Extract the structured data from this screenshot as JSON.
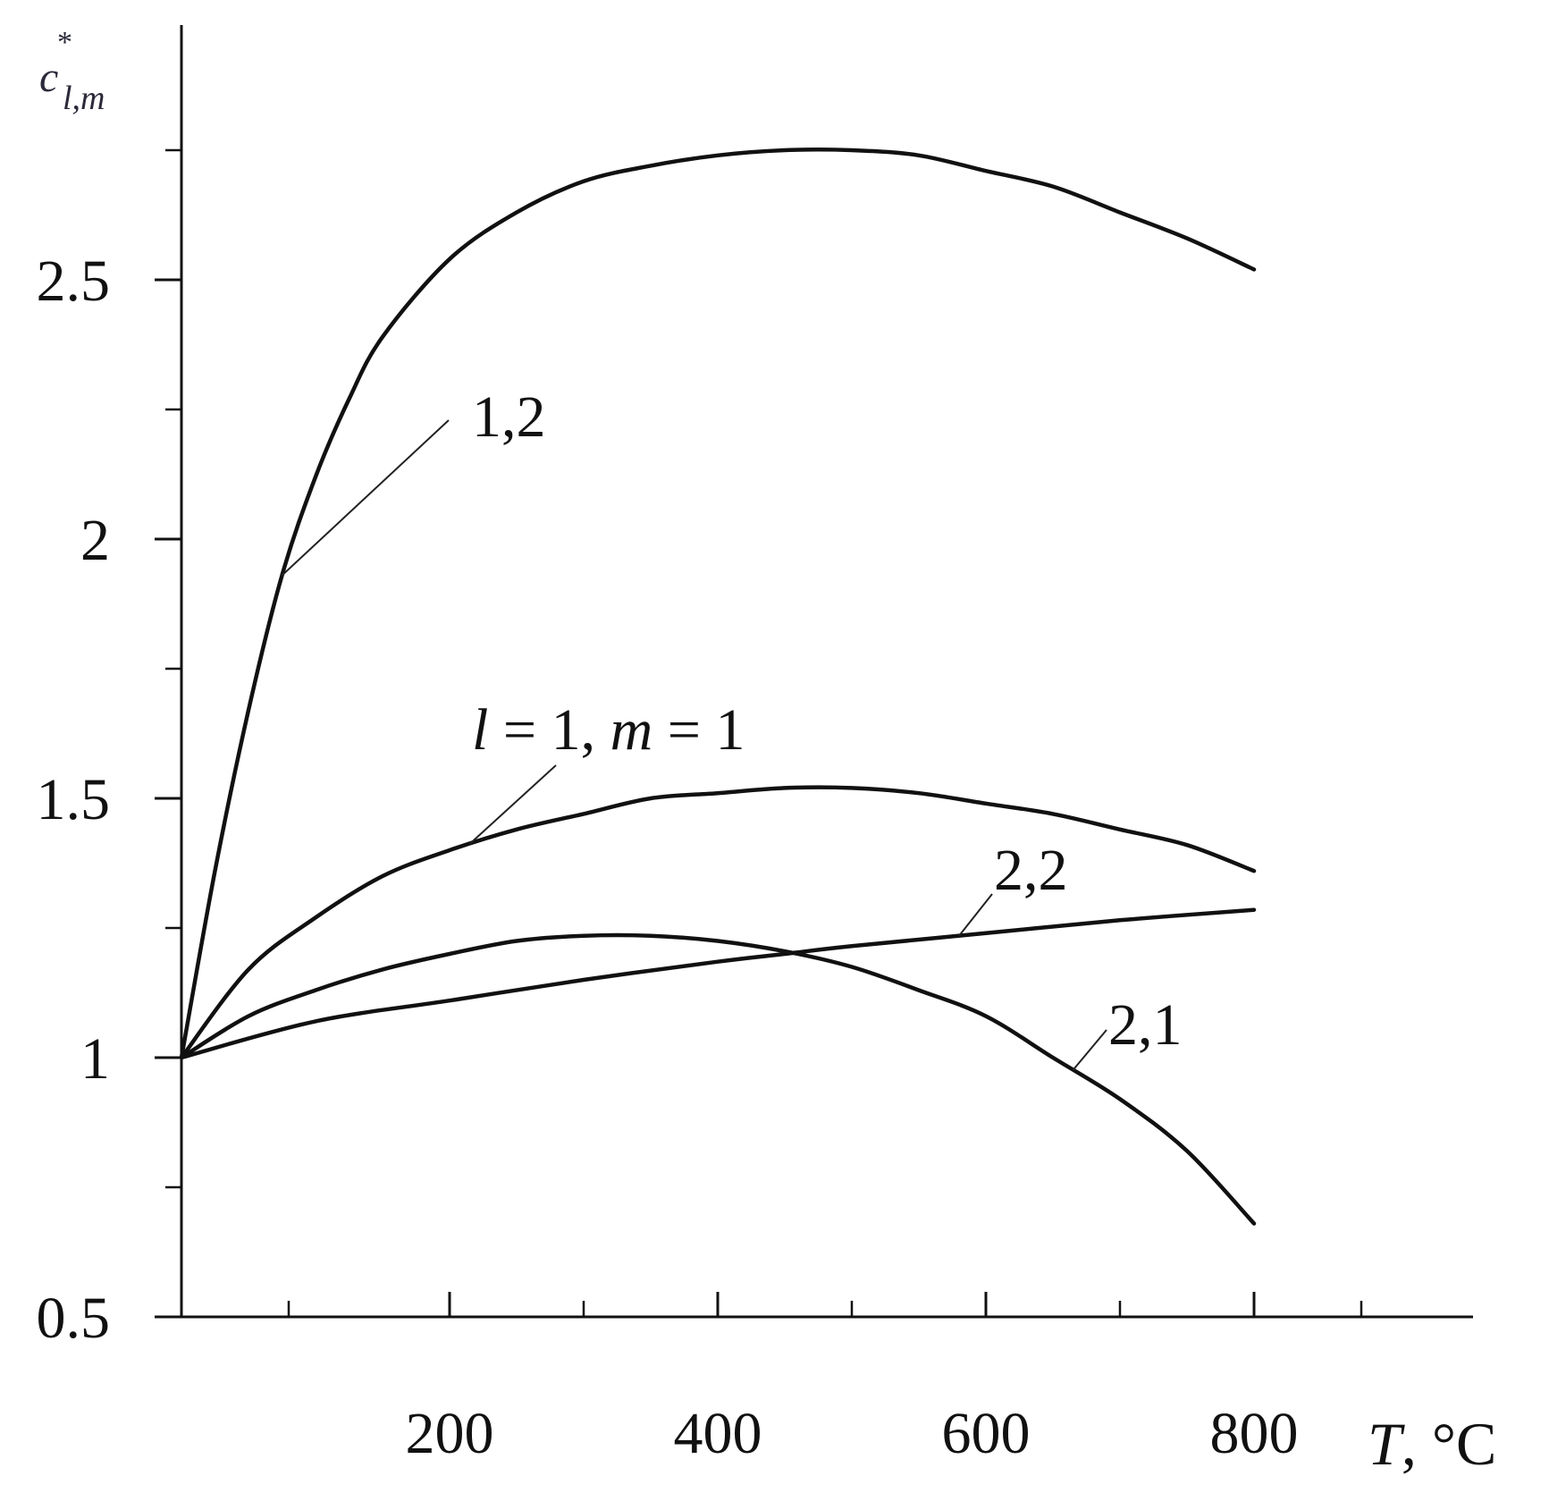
{
  "chart_data": {
    "type": "line",
    "xlabel": {
      "var": "T",
      "unit": ", °C"
    },
    "ylabel": {
      "base": "c",
      "sup": "*",
      "sub": "l,m"
    },
    "xlim": [
      0,
      960
    ],
    "ylim": [
      0.5,
      3.0
    ],
    "x_ticks": [
      200,
      400,
      600,
      800
    ],
    "x_minor_ticks": [
      80,
      300,
      500,
      700,
      880
    ],
    "y_ticks": [
      {
        "value": 0.5,
        "label": "0.5"
      },
      {
        "value": 1,
        "label": "1"
      },
      {
        "value": 1.5,
        "label": "1.5"
      },
      {
        "value": 2,
        "label": "2"
      },
      {
        "value": 2.5,
        "label": "2.5"
      }
    ],
    "y_minor_ticks": [
      0.75,
      1.25,
      1.75,
      2.25,
      2.75
    ],
    "grid": false,
    "series": [
      {
        "name": "l = 1, m = 1",
        "x": [
          0,
          50,
          100,
          150,
          200,
          250,
          300,
          350,
          400,
          450,
          500,
          550,
          600,
          650,
          700,
          750,
          800
        ],
        "y": [
          1.0,
          1.17,
          1.27,
          1.35,
          1.4,
          1.44,
          1.47,
          1.5,
          1.51,
          1.52,
          1.52,
          1.51,
          1.49,
          1.47,
          1.44,
          1.41,
          1.36
        ]
      },
      {
        "name": "1,2",
        "x": [
          0,
          25,
          50,
          75,
          100,
          125,
          150,
          200,
          250,
          300,
          350,
          400,
          450,
          500,
          550,
          600,
          650,
          700,
          750,
          800
        ],
        "y": [
          1.0,
          1.36,
          1.67,
          1.93,
          2.12,
          2.27,
          2.39,
          2.54,
          2.63,
          2.69,
          2.72,
          2.74,
          2.75,
          2.75,
          2.74,
          2.71,
          2.68,
          2.63,
          2.58,
          2.52
        ]
      },
      {
        "name": "2,2",
        "x": [
          0,
          100,
          200,
          300,
          400,
          450,
          500,
          600,
          700,
          800
        ],
        "y": [
          1.0,
          1.07,
          1.11,
          1.15,
          1.185,
          1.2,
          1.215,
          1.24,
          1.265,
          1.285
        ]
      },
      {
        "name": "2,1",
        "x": [
          0,
          50,
          100,
          150,
          200,
          250,
          300,
          350,
          400,
          450,
          500,
          550,
          600,
          650,
          700,
          750,
          800
        ],
        "y": [
          1.0,
          1.08,
          1.13,
          1.17,
          1.2,
          1.225,
          1.235,
          1.235,
          1.225,
          1.205,
          1.175,
          1.13,
          1.08,
          1.0,
          0.92,
          0.82,
          0.68
        ]
      }
    ],
    "annotations": [
      {
        "text": "1,2",
        "series": "1,2",
        "leader_at_x": 75
      },
      {
        "text_l": "l",
        "text_mid": " = 1, ",
        "text_m": "m",
        "text_end": " = 1",
        "series": "l = 1, m = 1",
        "leader_at_x": 215
      },
      {
        "text": "2,2",
        "series": "2,2",
        "leader_at_x": 580
      },
      {
        "text": "2,1",
        "series": "2,1",
        "leader_at_x": 665
      }
    ]
  }
}
